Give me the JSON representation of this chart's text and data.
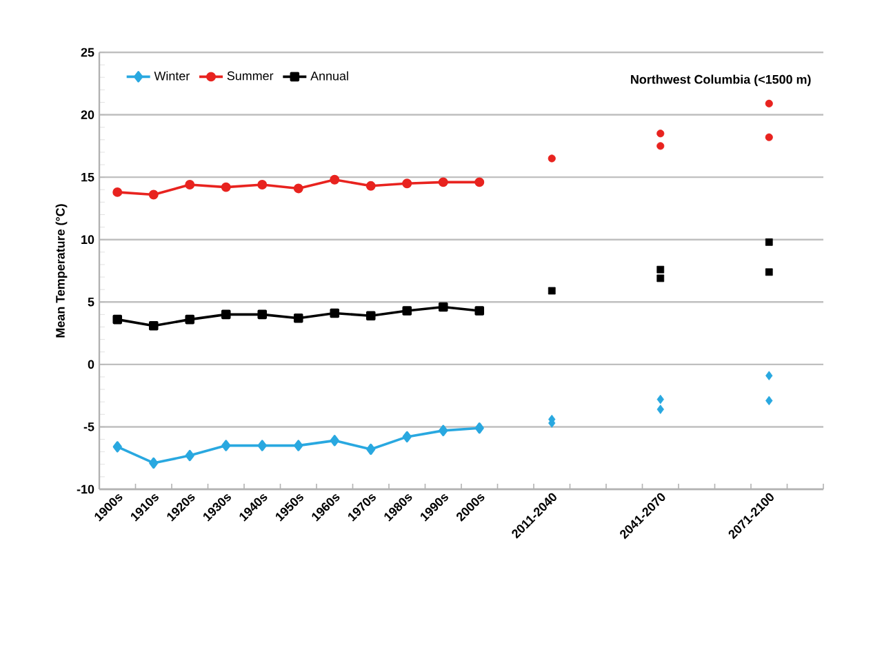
{
  "chart_data": {
    "type": "line",
    "ylabel": "Mean Temperature (°C)",
    "annotations": [
      "Northwest Columbia (<1500 m)"
    ],
    "categories": [
      "1900s",
      "1910s",
      "1920s",
      "1930s",
      "1940s",
      "1950s",
      "1960s",
      "1970s",
      "1980s",
      "1990s",
      "2000s",
      null,
      "2011-2040",
      null,
      null,
      "2041-2070",
      null,
      null,
      "2071-2100",
      null
    ],
    "ylim": [
      -10,
      25
    ],
    "yticks": [
      -10,
      -5,
      0,
      5,
      10,
      15,
      20,
      25
    ],
    "grid": "y",
    "legend": "top left",
    "series": [
      {
        "name": "Winter",
        "color": "#29a8e0",
        "marker": "diamond",
        "values": [
          -6.6,
          -7.9,
          -7.3,
          -6.5,
          -6.5,
          -6.5,
          -6.1,
          -6.8,
          -5.8,
          -5.3,
          -5.1,
          null,
          null,
          null,
          null,
          null,
          null,
          null,
          null,
          null
        ]
      },
      {
        "name": "Summer",
        "color": "#e8231f",
        "marker": "circle",
        "values": [
          13.8,
          13.6,
          14.4,
          14.2,
          14.4,
          14.1,
          14.8,
          14.3,
          14.5,
          14.6,
          14.6,
          null,
          null,
          null,
          null,
          null,
          null,
          null,
          null,
          null
        ]
      },
      {
        "name": "Annual",
        "color": "#000000",
        "marker": "square",
        "values": [
          3.6,
          3.1,
          3.6,
          4.0,
          4.0,
          3.7,
          4.1,
          3.9,
          4.3,
          4.6,
          4.3,
          null,
          null,
          null,
          null,
          null,
          null,
          null,
          null,
          null
        ]
      },
      {
        "type": "scatter",
        "color": "#29a8e0",
        "marker": "diamond",
        "values": [
          null,
          null,
          null,
          null,
          null,
          null,
          null,
          null,
          null,
          null,
          null,
          null,
          -4.4,
          null,
          null,
          -2.8,
          null,
          null,
          -0.9,
          null
        ]
      },
      {
        "type": "scatter",
        "color": "#29a8e0",
        "marker": "diamond",
        "values": [
          null,
          null,
          null,
          null,
          null,
          null,
          null,
          null,
          null,
          null,
          null,
          null,
          -4.7,
          null,
          null,
          -3.6,
          null,
          null,
          -2.9,
          null
        ]
      },
      {
        "type": "scatter",
        "color": "#e8231f",
        "marker": "circle",
        "values": [
          null,
          null,
          null,
          null,
          null,
          null,
          null,
          null,
          null,
          null,
          null,
          null,
          null,
          null,
          null,
          18.5,
          null,
          null,
          20.9,
          null
        ]
      },
      {
        "type": "scatter",
        "color": "#e8231f",
        "marker": "circle",
        "values": [
          null,
          null,
          null,
          null,
          null,
          null,
          null,
          null,
          null,
          null,
          null,
          null,
          16.5,
          null,
          null,
          17.5,
          null,
          null,
          18.2,
          null
        ]
      },
      {
        "type": "scatter",
        "color": "#000000",
        "marker": "square",
        "values": [
          null,
          null,
          null,
          null,
          null,
          null,
          null,
          null,
          null,
          null,
          null,
          null,
          null,
          null,
          null,
          7.6,
          null,
          null,
          9.8,
          null
        ]
      },
      {
        "type": "scatter",
        "color": "#000000",
        "marker": "square",
        "values": [
          null,
          null,
          null,
          null,
          null,
          null,
          null,
          null,
          null,
          null,
          null,
          null,
          5.9,
          null,
          null,
          6.9,
          null,
          null,
          7.4,
          null
        ]
      }
    ]
  }
}
